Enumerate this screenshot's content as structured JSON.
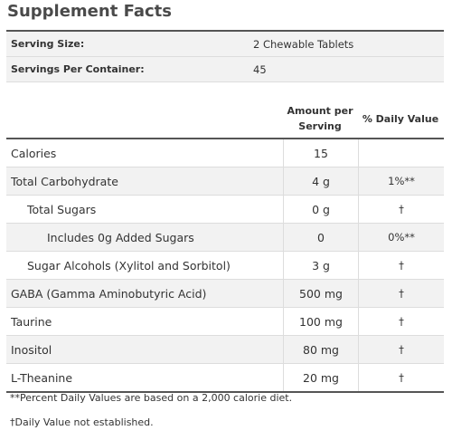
{
  "title": "Supplement Facts",
  "serving": {
    "rows": [
      [
        "Serving Size:",
        "2 Chewable Tablets"
      ],
      [
        "Servings Per Container:",
        "45"
      ]
    ]
  },
  "table": {
    "header": [
      "Amount per Serving",
      "% Daily Value"
    ],
    "rows": [
      [
        "Calories",
        "15",
        ""
      ],
      [
        "Total Carbohydrate",
        "4 g",
        "1%**"
      ],
      [
        "Total Sugars",
        "0 g",
        "†"
      ],
      [
        "Includes 0g Added Sugars",
        "0",
        "0%**"
      ],
      [
        "Sugar Alcohols (Xylitol and Sorbitol)",
        "3 g",
        "†"
      ],
      [
        "GABA (Gamma Aminobutyric Acid)",
        "500 mg",
        "†"
      ],
      [
        "Taurine",
        "100 mg",
        "†"
      ],
      [
        "Inositol",
        "80 mg",
        "†"
      ],
      [
        "L-Theanine",
        "20 mg",
        "†"
      ]
    ]
  },
  "footnotes": [
    "**Percent Daily Values are based on a 2,000 calorie diet.",
    "†Daily Value not established."
  ]
}
